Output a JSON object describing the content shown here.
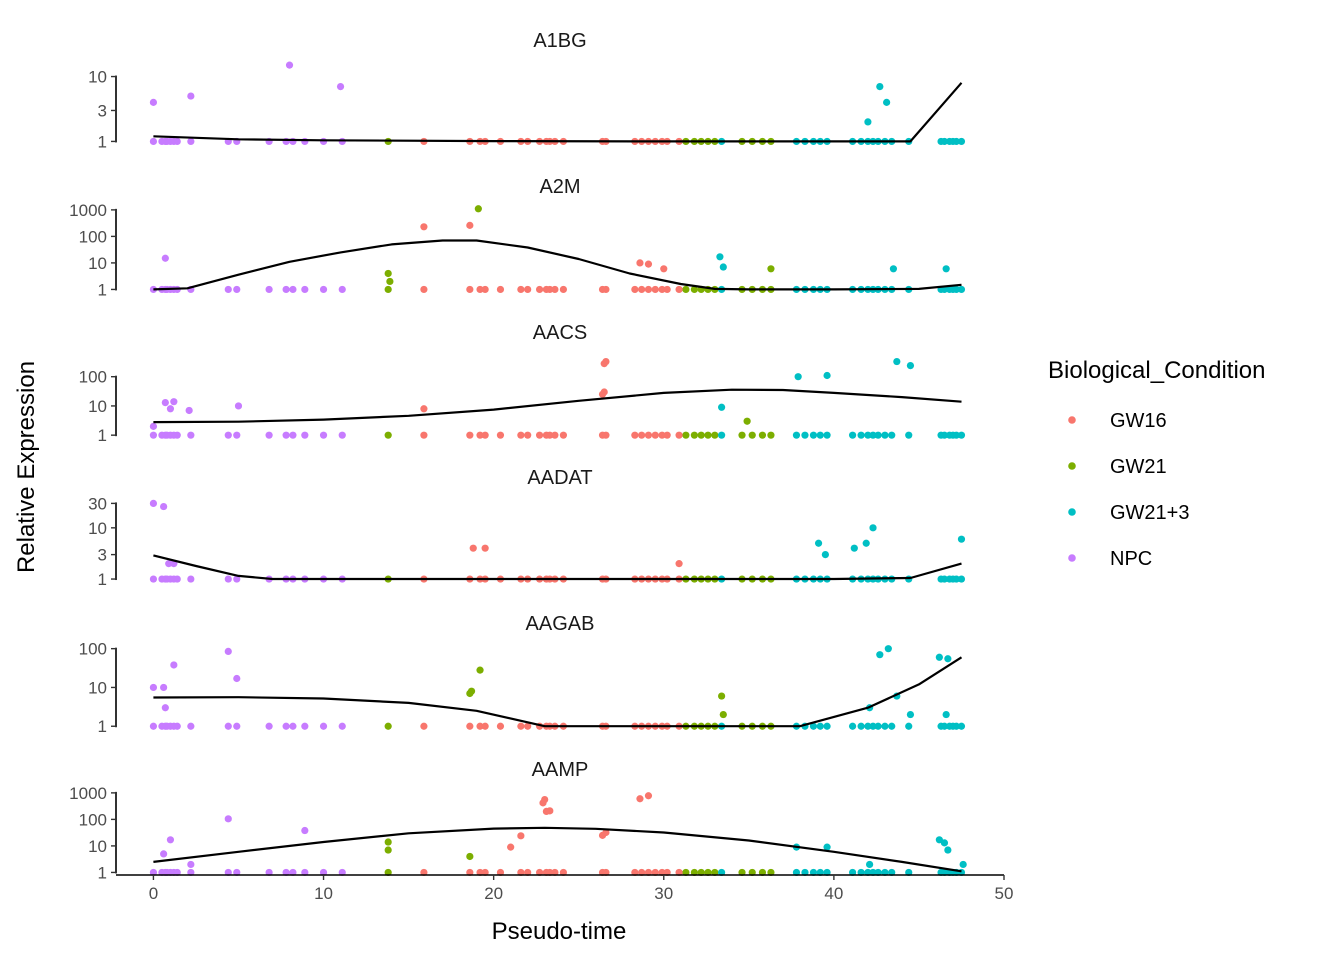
{
  "chart_data": {
    "type": "scatter",
    "title": "",
    "xlabel": "Pseudo-time",
    "ylabel": "Relative Expression",
    "xlim": [
      -2.2,
      50
    ],
    "x_ticks": [
      0,
      10,
      20,
      30,
      40,
      50
    ],
    "x_tick_labels": [
      "0",
      "10",
      "20",
      "30",
      "40",
      "50"
    ],
    "yscale": "log10",
    "legend": {
      "title": "Biological_Condition",
      "position": "right",
      "entries": [
        {
          "name": "GW16",
          "color": "#F8766D"
        },
        {
          "name": "GW21",
          "color": "#7CAE00"
        },
        {
          "name": "GW21+3",
          "color": "#00BFC4"
        },
        {
          "name": "NPC",
          "color": "#C77CFF"
        }
      ]
    },
    "baseline_x": {
      "NPC": [
        0,
        0.5,
        0.7,
        0.8,
        1.0,
        1.2,
        1.4,
        2.2,
        4.4,
        4.9,
        6.8,
        7.8,
        8.2,
        8.9,
        10,
        11.1
      ],
      "GW21": [
        13.8,
        31.3,
        31.8,
        32.2,
        32.6,
        33.0,
        34.6,
        35.2,
        35.8,
        36.3
      ],
      "GW16": [
        15.9,
        18.6,
        19.2,
        19.5,
        20.4,
        21.6,
        22.0,
        22.7,
        23.1,
        23.3,
        23.6,
        24.1,
        26.4,
        26.6,
        28.3,
        28.7,
        29.1,
        29.5,
        29.9,
        30.2,
        30.9
      ],
      "GW21+3": [
        33.4,
        37.8,
        38.3,
        38.8,
        39.2,
        39.6,
        41.1,
        41.6,
        42.0,
        42.3,
        42.6,
        43.0,
        43.4,
        44.4,
        46.3,
        46.5,
        46.8,
        47.0,
        47.2,
        47.5
      ]
    },
    "facets": [
      {
        "title": "A1BG",
        "ylim": [
          0.85,
          18
        ],
        "y_ticks": [
          1,
          3,
          10
        ],
        "y_tick_labels": [
          "1",
          "3",
          "10"
        ],
        "trend": [
          [
            0,
            1.2
          ],
          [
            5,
            1.08
          ],
          [
            10,
            1.04
          ],
          [
            20,
            1.01
          ],
          [
            30,
            1.0
          ],
          [
            40,
            1.0
          ],
          [
            44.5,
            1.0
          ],
          [
            47.5,
            8
          ]
        ],
        "points": [
          {
            "x": 0.0,
            "y": 4,
            "g": "NPC"
          },
          {
            "x": 2.2,
            "y": 5,
            "g": "NPC"
          },
          {
            "x": 8.0,
            "y": 15,
            "g": "NPC"
          },
          {
            "x": 11.0,
            "y": 7,
            "g": "NPC"
          },
          {
            "x": 42.0,
            "y": 2,
            "g": "GW21+3"
          },
          {
            "x": 42.7,
            "y": 7,
            "g": "GW21+3"
          },
          {
            "x": 43.1,
            "y": 4,
            "g": "GW21+3"
          }
        ]
      },
      {
        "title": "A2M",
        "ylim": [
          0.8,
          1400
        ],
        "y_ticks": [
          1,
          10,
          100,
          1000
        ],
        "y_tick_labels": [
          "1",
          "10",
          "100",
          "1000"
        ],
        "trend": [
          [
            0,
            1.0
          ],
          [
            2,
            1.1
          ],
          [
            5,
            3.6
          ],
          [
            8,
            11
          ],
          [
            11,
            25
          ],
          [
            14,
            50
          ],
          [
            17,
            70
          ],
          [
            19,
            70
          ],
          [
            22,
            38
          ],
          [
            25,
            14
          ],
          [
            28,
            4
          ],
          [
            31,
            1.6
          ],
          [
            33,
            1.05
          ],
          [
            35,
            1.0
          ],
          [
            40,
            1.0
          ],
          [
            45,
            1.05
          ],
          [
            47.5,
            1.5
          ]
        ],
        "points": [
          {
            "x": 0.7,
            "y": 15,
            "g": "NPC"
          },
          {
            "x": 13.8,
            "y": 4,
            "g": "GW21"
          },
          {
            "x": 13.9,
            "y": 2,
            "g": "GW21"
          },
          {
            "x": 15.9,
            "y": 230,
            "g": "GW16"
          },
          {
            "x": 18.6,
            "y": 260,
            "g": "GW16"
          },
          {
            "x": 19.1,
            "y": 1100,
            "g": "GW21"
          },
          {
            "x": 28.6,
            "y": 10,
            "g": "GW16"
          },
          {
            "x": 29.1,
            "y": 9,
            "g": "GW16"
          },
          {
            "x": 30.0,
            "y": 6,
            "g": "GW16"
          },
          {
            "x": 33.3,
            "y": 17,
            "g": "GW21+3"
          },
          {
            "x": 33.5,
            "y": 7,
            "g": "GW21+3"
          },
          {
            "x": 36.3,
            "y": 6,
            "g": "GW21"
          },
          {
            "x": 43.5,
            "y": 6,
            "g": "GW21+3"
          },
          {
            "x": 46.6,
            "y": 6,
            "g": "GW21+3"
          }
        ]
      },
      {
        "title": "AACS",
        "ylim": [
          0.8,
          700
        ],
        "y_ticks": [
          1,
          10,
          100
        ],
        "y_tick_labels": [
          "1",
          "10",
          "100"
        ],
        "trend": [
          [
            0,
            2.8
          ],
          [
            5,
            2.9
          ],
          [
            10,
            3.4
          ],
          [
            15,
            4.6
          ],
          [
            20,
            7.5
          ],
          [
            25,
            15
          ],
          [
            30,
            28
          ],
          [
            34,
            36
          ],
          [
            37,
            35
          ],
          [
            40,
            28
          ],
          [
            44,
            20
          ],
          [
            47.5,
            14
          ]
        ],
        "points": [
          {
            "x": 0.0,
            "y": 2,
            "g": "NPC"
          },
          {
            "x": 0.7,
            "y": 13,
            "g": "NPC"
          },
          {
            "x": 1.0,
            "y": 8,
            "g": "NPC"
          },
          {
            "x": 1.2,
            "y": 14,
            "g": "NPC"
          },
          {
            "x": 2.1,
            "y": 7,
            "g": "NPC"
          },
          {
            "x": 5.0,
            "y": 10,
            "g": "NPC"
          },
          {
            "x": 15.9,
            "y": 8,
            "g": "GW16"
          },
          {
            "x": 26.4,
            "y": 25,
            "g": "GW16"
          },
          {
            "x": 26.5,
            "y": 30,
            "g": "GW16"
          },
          {
            "x": 26.5,
            "y": 280,
            "g": "GW16"
          },
          {
            "x": 26.6,
            "y": 330,
            "g": "GW16"
          },
          {
            "x": 33.4,
            "y": 9,
            "g": "GW21+3"
          },
          {
            "x": 34.9,
            "y": 3,
            "g": "GW21"
          },
          {
            "x": 37.9,
            "y": 100,
            "g": "GW21+3"
          },
          {
            "x": 39.6,
            "y": 110,
            "g": "GW21+3"
          },
          {
            "x": 43.7,
            "y": 330,
            "g": "GW21+3"
          },
          {
            "x": 44.5,
            "y": 240,
            "g": "GW21+3"
          }
        ]
      },
      {
        "title": "AADAT",
        "ylim": [
          0.8,
          40
        ],
        "y_ticks": [
          1,
          3,
          10,
          30
        ],
        "y_tick_labels": [
          "1",
          "3",
          "10",
          "30"
        ],
        "trend": [
          [
            0,
            2.9
          ],
          [
            2.5,
            1.8
          ],
          [
            5,
            1.15
          ],
          [
            7,
            1.0
          ],
          [
            20,
            1.0
          ],
          [
            30,
            1.0
          ],
          [
            40,
            1.0
          ],
          [
            44.5,
            1.05
          ],
          [
            47.5,
            2.0
          ]
        ],
        "points": [
          {
            "x": 0.0,
            "y": 30,
            "g": "NPC"
          },
          {
            "x": 0.6,
            "y": 26,
            "g": "NPC"
          },
          {
            "x": 0.9,
            "y": 2,
            "g": "NPC"
          },
          {
            "x": 1.2,
            "y": 2,
            "g": "NPC"
          },
          {
            "x": 18.8,
            "y": 4,
            "g": "GW16"
          },
          {
            "x": 19.5,
            "y": 4,
            "g": "GW16"
          },
          {
            "x": 30.9,
            "y": 2,
            "g": "GW16"
          },
          {
            "x": 39.1,
            "y": 5,
            "g": "GW21+3"
          },
          {
            "x": 39.5,
            "y": 3,
            "g": "GW21+3"
          },
          {
            "x": 41.2,
            "y": 4,
            "g": "GW21+3"
          },
          {
            "x": 41.9,
            "y": 5,
            "g": "GW21+3"
          },
          {
            "x": 42.3,
            "y": 10,
            "g": "GW21+3"
          },
          {
            "x": 47.5,
            "y": 6,
            "g": "GW21+3"
          }
        ]
      },
      {
        "title": "AAGAB",
        "ylim": [
          0.8,
          140
        ],
        "y_ticks": [
          1,
          10,
          100
        ],
        "y_tick_labels": [
          "1",
          "10",
          "100"
        ],
        "trend": [
          [
            0,
            5.5
          ],
          [
            5,
            5.6
          ],
          [
            10,
            5.2
          ],
          [
            15,
            4.0
          ],
          [
            19,
            2.5
          ],
          [
            23,
            1.0
          ],
          [
            30,
            1.0
          ],
          [
            38,
            1.0
          ],
          [
            42,
            3.0
          ],
          [
            45,
            12
          ],
          [
            47.5,
            60
          ]
        ],
        "points": [
          {
            "x": 0.0,
            "y": 10,
            "g": "NPC"
          },
          {
            "x": 0.6,
            "y": 10,
            "g": "NPC"
          },
          {
            "x": 0.7,
            "y": 3,
            "g": "NPC"
          },
          {
            "x": 1.2,
            "y": 38,
            "g": "NPC"
          },
          {
            "x": 4.4,
            "y": 85,
            "g": "NPC"
          },
          {
            "x": 4.9,
            "y": 17,
            "g": "NPC"
          },
          {
            "x": 18.6,
            "y": 7,
            "g": "GW21"
          },
          {
            "x": 18.7,
            "y": 8,
            "g": "GW21"
          },
          {
            "x": 19.2,
            "y": 28,
            "g": "GW21"
          },
          {
            "x": 33.4,
            "y": 6,
            "g": "GW21"
          },
          {
            "x": 33.5,
            "y": 2,
            "g": "GW21"
          },
          {
            "x": 42.1,
            "y": 3,
            "g": "GW21+3"
          },
          {
            "x": 42.7,
            "y": 70,
            "g": "GW21+3"
          },
          {
            "x": 43.2,
            "y": 100,
            "g": "GW21+3"
          },
          {
            "x": 43.7,
            "y": 6,
            "g": "GW21+3"
          },
          {
            "x": 44.5,
            "y": 2,
            "g": "GW21+3"
          },
          {
            "x": 46.2,
            "y": 60,
            "g": "GW21+3"
          },
          {
            "x": 46.7,
            "y": 55,
            "g": "GW21+3"
          },
          {
            "x": 46.6,
            "y": 2,
            "g": "GW21+3"
          }
        ]
      },
      {
        "title": "AAMP",
        "ylim": [
          0.8,
          1400
        ],
        "y_ticks": [
          1,
          10,
          100,
          1000
        ],
        "y_tick_labels": [
          "1",
          "10",
          "100",
          "1000"
        ],
        "trend": [
          [
            0,
            2.5
          ],
          [
            5,
            6
          ],
          [
            10,
            14
          ],
          [
            15,
            30
          ],
          [
            20,
            45
          ],
          [
            23,
            48
          ],
          [
            26,
            44
          ],
          [
            30,
            32
          ],
          [
            35,
            16
          ],
          [
            40,
            6
          ],
          [
            44,
            2.5
          ],
          [
            47.5,
            1.1
          ]
        ],
        "points": [
          {
            "x": 0.6,
            "y": 5,
            "g": "NPC"
          },
          {
            "x": 1.0,
            "y": 17,
            "g": "NPC"
          },
          {
            "x": 2.2,
            "y": 2,
            "g": "NPC"
          },
          {
            "x": 4.4,
            "y": 105,
            "g": "NPC"
          },
          {
            "x": 8.9,
            "y": 38,
            "g": "NPC"
          },
          {
            "x": 13.8,
            "y": 14,
            "g": "GW21"
          },
          {
            "x": 13.8,
            "y": 7,
            "g": "GW21"
          },
          {
            "x": 18.6,
            "y": 4,
            "g": "GW21"
          },
          {
            "x": 21.0,
            "y": 9,
            "g": "GW16"
          },
          {
            "x": 21.6,
            "y": 24,
            "g": "GW16"
          },
          {
            "x": 22.9,
            "y": 420,
            "g": "GW16"
          },
          {
            "x": 23.0,
            "y": 560,
            "g": "GW16"
          },
          {
            "x": 23.1,
            "y": 200,
            "g": "GW16"
          },
          {
            "x": 23.3,
            "y": 210,
            "g": "GW16"
          },
          {
            "x": 26.4,
            "y": 25,
            "g": "GW16"
          },
          {
            "x": 26.6,
            "y": 32,
            "g": "GW16"
          },
          {
            "x": 28.6,
            "y": 600,
            "g": "GW16"
          },
          {
            "x": 29.1,
            "y": 780,
            "g": "GW16"
          },
          {
            "x": 37.8,
            "y": 9,
            "g": "GW21+3"
          },
          {
            "x": 39.6,
            "y": 9,
            "g": "GW21+3"
          },
          {
            "x": 42.1,
            "y": 2,
            "g": "GW21+3"
          },
          {
            "x": 46.2,
            "y": 17,
            "g": "GW21+3"
          },
          {
            "x": 46.5,
            "y": 13,
            "g": "GW21+3"
          },
          {
            "x": 46.7,
            "y": 7,
            "g": "GW21+3"
          },
          {
            "x": 47.6,
            "y": 2,
            "g": "GW21+3"
          }
        ]
      }
    ]
  }
}
